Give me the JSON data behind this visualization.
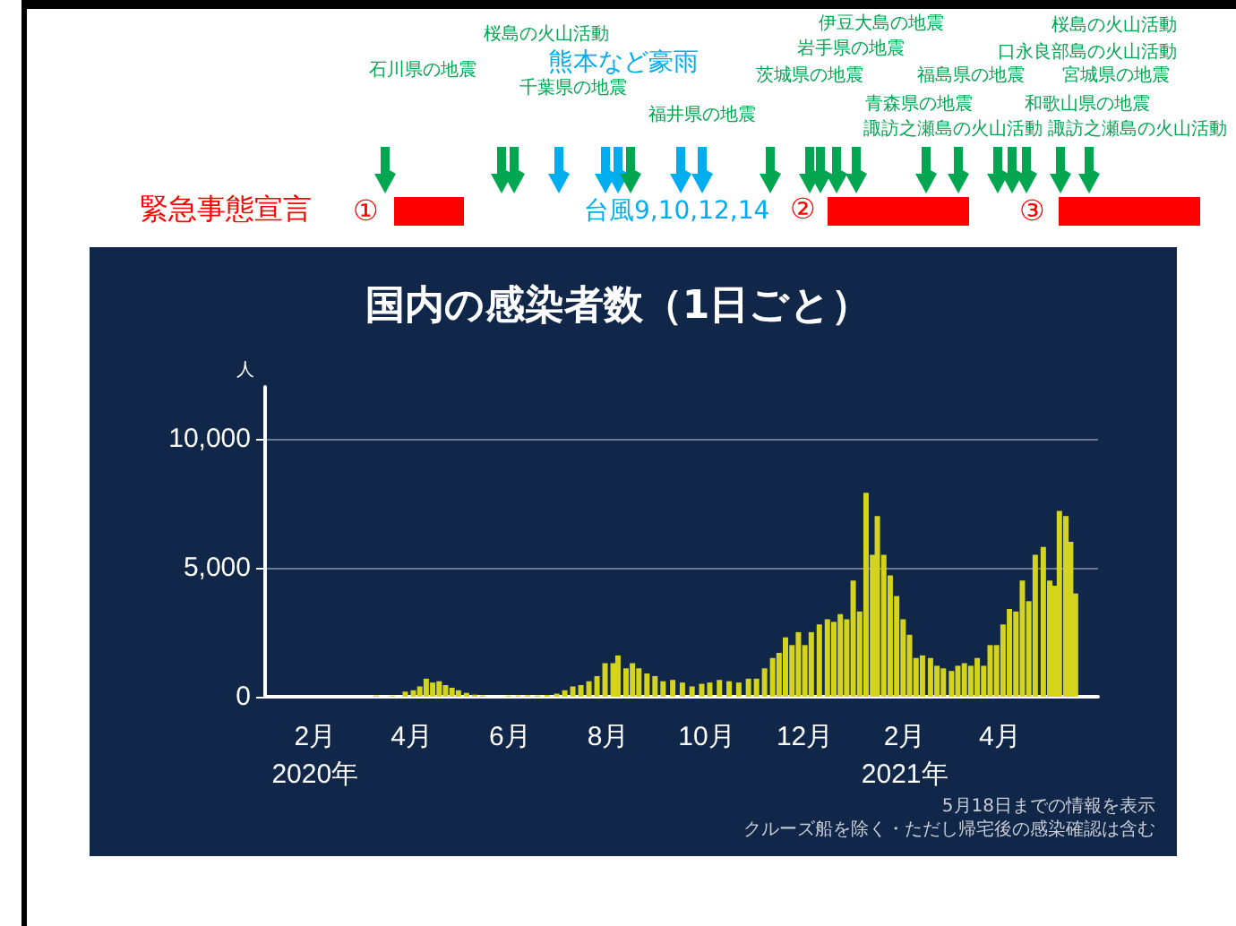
{
  "chart_data": {
    "type": "bar",
    "title": "国内の感染者数（1日ごと）",
    "ylabel": "人",
    "color": "#d4d41c",
    "x": [
      "2020-02-01",
      "2020-02-15",
      "2020-02-29",
      "2020-03-10",
      "2020-03-20",
      "2020-03-28",
      "2020-04-02",
      "2020-04-06",
      "2020-04-10",
      "2020-04-14",
      "2020-04-18",
      "2020-04-22",
      "2020-04-26",
      "2020-04-30",
      "2020-05-05",
      "2020-05-10",
      "2020-05-15",
      "2020-05-20",
      "2020-05-25",
      "2020-05-31",
      "2020-06-06",
      "2020-06-12",
      "2020-06-18",
      "2020-06-24",
      "2020-06-30",
      "2020-07-05",
      "2020-07-10",
      "2020-07-15",
      "2020-07-20",
      "2020-07-25",
      "2020-07-30",
      "2020-08-04",
      "2020-08-07",
      "2020-08-12",
      "2020-08-16",
      "2020-08-20",
      "2020-08-25",
      "2020-08-30",
      "2020-09-04",
      "2020-09-10",
      "2020-09-16",
      "2020-09-22",
      "2020-09-28",
      "2020-10-03",
      "2020-10-09",
      "2020-10-15",
      "2020-10-21",
      "2020-10-27",
      "2020-11-01",
      "2020-11-06",
      "2020-11-11",
      "2020-11-15",
      "2020-11-19",
      "2020-11-23",
      "2020-11-27",
      "2020-12-01",
      "2020-12-05",
      "2020-12-10",
      "2020-12-15",
      "2020-12-19",
      "2020-12-23",
      "2020-12-27",
      "2020-12-31",
      "2021-01-04",
      "2021-01-08",
      "2021-01-12",
      "2021-01-15",
      "2021-01-19",
      "2021-01-23",
      "2021-01-27",
      "2021-01-31",
      "2021-02-04",
      "2021-02-08",
      "2021-02-12",
      "2021-02-17",
      "2021-02-21",
      "2021-02-25",
      "2021-03-02",
      "2021-03-06",
      "2021-03-10",
      "2021-03-14",
      "2021-03-18",
      "2021-03-22",
      "2021-03-26",
      "2021-03-30",
      "2021-04-03",
      "2021-04-07",
      "2021-04-11",
      "2021-04-15",
      "2021-04-19",
      "2021-04-23",
      "2021-04-28",
      "2021-05-02",
      "2021-05-05",
      "2021-05-08",
      "2021-05-12",
      "2021-05-15",
      "2021-05-18"
    ],
    "values": [
      0,
      0,
      0,
      50,
      40,
      200,
      250,
      400,
      700,
      550,
      600,
      450,
      350,
      250,
      150,
      80,
      50,
      null,
      null,
      40,
      50,
      60,
      50,
      70,
      120,
      250,
      400,
      450,
      600,
      800,
      1300,
      1300,
      1600,
      1100,
      1300,
      1100,
      900,
      800,
      600,
      650,
      550,
      400,
      500,
      550,
      650,
      600,
      550,
      700,
      700,
      1100,
      1500,
      1700,
      2300,
      2000,
      2500,
      2000,
      2500,
      2800,
      3000,
      2900,
      3200,
      3000,
      4500,
      3300,
      7900,
      5500,
      7000,
      5500,
      4700,
      3900,
      3000,
      2400,
      1500,
      1600,
      1500,
      1200,
      1100,
      1000,
      1200,
      1300,
      1200,
      1500,
      1200,
      2000,
      2000,
      2800,
      3400,
      3300,
      4500,
      3700,
      5500,
      5800,
      4500,
      4300,
      7200,
      7000,
      6000,
      4000
    ],
    "xlim": [
      "2020-01-01",
      "2021-06-01"
    ],
    "xticks": [
      {
        "value": "2020-02-01",
        "label": "2月\n2020年"
      },
      {
        "value": "2020-04-01",
        "label": "4月"
      },
      {
        "value": "2020-06-01",
        "label": "6月"
      },
      {
        "value": "2020-08-01",
        "label": "8月"
      },
      {
        "value": "2020-10-01",
        "label": "10月"
      },
      {
        "value": "2020-12-01",
        "label": "12月"
      },
      {
        "value": "2021-02-01",
        "label": "2月\n2021年"
      },
      {
        "value": "2021-04-01",
        "label": "4月"
      }
    ],
    "ylim": [
      0,
      12000
    ],
    "yticks": [
      0,
      {
        "value": 5000,
        "label": "5,000"
      },
      {
        "value": 10000,
        "label": "10,000"
      }
    ],
    "grid": "y",
    "annotations": [
      "緊急事態宣言",
      "①",
      "②",
      "③",
      "桜島の火山活動",
      "石川県の地震",
      "千葉県の地震",
      "福井県の地震",
      "伊豆大島の地震",
      "岩手県の地震",
      "茨城県の地震",
      "福島県の地震",
      "青森県の地震",
      "諏訪之瀬島の火山活動",
      "桜島の火山活動",
      "口永良部島の火山活動",
      "宮城県の地震",
      "和歌山県の地震",
      "諏訪之瀬島の火山活動",
      "熊本など豪雨",
      "台風9,10,12,14",
      "5月18日までの情報を表示",
      "クルーズ船を除く・ただし帰宅後の感染確認は含む"
    ]
  }
}
